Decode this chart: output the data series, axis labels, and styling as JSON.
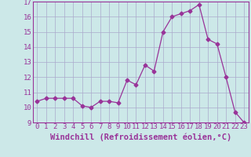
{
  "x": [
    0,
    1,
    2,
    3,
    4,
    5,
    6,
    7,
    8,
    9,
    10,
    11,
    12,
    13,
    14,
    15,
    16,
    17,
    18,
    19,
    20,
    21,
    22,
    23
  ],
  "y": [
    10.4,
    10.6,
    10.6,
    10.6,
    10.6,
    10.1,
    10.0,
    10.4,
    10.4,
    10.3,
    11.8,
    11.5,
    12.8,
    12.4,
    15.0,
    16.0,
    16.2,
    16.4,
    16.8,
    14.5,
    14.2,
    12.0,
    9.7,
    9.0
  ],
  "line_color": "#993399",
  "marker": "D",
  "marker_size": 2.5,
  "bg_color": "#cce8e8",
  "grid_color": "#aaaacc",
  "xlabel": "Windchill (Refroidissement éolien,°C)",
  "xlabel_fontsize": 7.5,
  "tick_fontsize": 6.5,
  "ylim": [
    9,
    17
  ],
  "xlim": [
    -0.5,
    23.5
  ],
  "yticks": [
    9,
    10,
    11,
    12,
    13,
    14,
    15,
    16,
    17
  ],
  "xticks": [
    0,
    1,
    2,
    3,
    4,
    5,
    6,
    7,
    8,
    9,
    10,
    11,
    12,
    13,
    14,
    15,
    16,
    17,
    18,
    19,
    20,
    21,
    22,
    23
  ]
}
